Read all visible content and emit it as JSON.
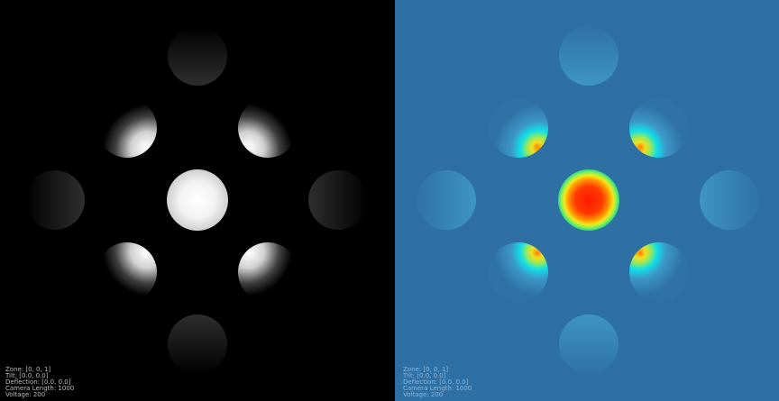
{
  "panels": [
    {
      "info": [
        "Zone: [0, 0, 1]",
        "Tilt: [0.0, 0.0]",
        "Deflection: [0.0, 0.0]",
        "Camera Length: 1000",
        "Voltage: 200"
      ]
    },
    {
      "info": [
        "Zone: [0, 0, 1]",
        "Tilt: [0.0, 0.0]",
        "Deflection: [0.0, 0.0]",
        "Camera Length: 1000",
        "Voltage: 200"
      ]
    }
  ]
}
